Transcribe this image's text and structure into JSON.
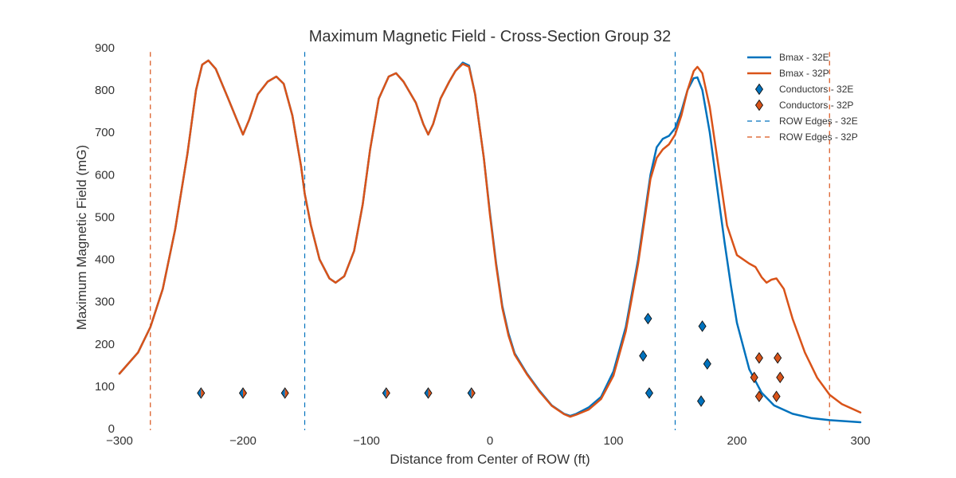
{
  "chart_data": {
    "type": "line",
    "title": "Maximum Magnetic Field - Cross-Section Group 32",
    "xlabel": "Distance from Center of ROW (ft)",
    "ylabel": "Maximum Magnetic Field (mG)",
    "xlim": [
      -300,
      300
    ],
    "ylim": [
      0,
      900
    ],
    "x_ticks": [
      -300,
      -200,
      -100,
      0,
      100,
      200,
      300
    ],
    "x_tick_labels": [
      "−300",
      "−200",
      "−100",
      "0",
      "100",
      "200",
      "300"
    ],
    "y_ticks": [
      0,
      100,
      200,
      300,
      400,
      500,
      600,
      700,
      800,
      900
    ],
    "grid": false,
    "legend_position": "top-right",
    "colors": {
      "32E": "#0072bd",
      "32P": "#d95319"
    },
    "series": [
      {
        "name": "Bmax - 32E",
        "color": "#0072bd",
        "points": [
          [
            -300,
            130
          ],
          [
            -285,
            180
          ],
          [
            -275,
            240
          ],
          [
            -265,
            330
          ],
          [
            -255,
            470
          ],
          [
            -245,
            650
          ],
          [
            -238,
            800
          ],
          [
            -233,
            860
          ],
          [
            -228,
            870
          ],
          [
            -222,
            850
          ],
          [
            -212,
            780
          ],
          [
            -205,
            730
          ],
          [
            -200,
            695
          ],
          [
            -195,
            730
          ],
          [
            -188,
            790
          ],
          [
            -180,
            820
          ],
          [
            -173,
            832
          ],
          [
            -167,
            815
          ],
          [
            -160,
            740
          ],
          [
            -153,
            620
          ],
          [
            -150,
            555
          ],
          [
            -145,
            480
          ],
          [
            -138,
            400
          ],
          [
            -130,
            355
          ],
          [
            -125,
            345
          ],
          [
            -118,
            360
          ],
          [
            -110,
            420
          ],
          [
            -103,
            530
          ],
          [
            -97,
            660
          ],
          [
            -90,
            780
          ],
          [
            -82,
            832
          ],
          [
            -76,
            840
          ],
          [
            -70,
            820
          ],
          [
            -60,
            770
          ],
          [
            -54,
            720
          ],
          [
            -50,
            695
          ],
          [
            -46,
            720
          ],
          [
            -40,
            780
          ],
          [
            -33,
            820
          ],
          [
            -28,
            845
          ],
          [
            -22,
            865
          ],
          [
            -17,
            858
          ],
          [
            -12,
            790
          ],
          [
            -5,
            640
          ],
          [
            0,
            510
          ],
          [
            5,
            390
          ],
          [
            10,
            290
          ],
          [
            15,
            225
          ],
          [
            20,
            178
          ],
          [
            30,
            130
          ],
          [
            40,
            90
          ],
          [
            50,
            55
          ],
          [
            60,
            35
          ],
          [
            65,
            30
          ],
          [
            70,
            35
          ],
          [
            80,
            50
          ],
          [
            90,
            75
          ],
          [
            100,
            135
          ],
          [
            110,
            240
          ],
          [
            120,
            400
          ],
          [
            125,
            500
          ],
          [
            130,
            600
          ],
          [
            135,
            665
          ],
          [
            140,
            685
          ],
          [
            145,
            692
          ],
          [
            150,
            710
          ],
          [
            155,
            750
          ],
          [
            160,
            800
          ],
          [
            165,
            828
          ],
          [
            168,
            830
          ],
          [
            172,
            800
          ],
          [
            178,
            700
          ],
          [
            183,
            590
          ],
          [
            190,
            440
          ],
          [
            195,
            340
          ],
          [
            200,
            250
          ],
          [
            210,
            140
          ],
          [
            220,
            85
          ],
          [
            230,
            55
          ],
          [
            245,
            35
          ],
          [
            260,
            25
          ],
          [
            275,
            20
          ],
          [
            300,
            15
          ]
        ]
      },
      {
        "name": "Bmax - 32P",
        "color": "#d95319",
        "points": [
          [
            -300,
            130
          ],
          [
            -285,
            180
          ],
          [
            -275,
            240
          ],
          [
            -265,
            330
          ],
          [
            -255,
            470
          ],
          [
            -245,
            650
          ],
          [
            -238,
            800
          ],
          [
            -233,
            860
          ],
          [
            -228,
            870
          ],
          [
            -222,
            850
          ],
          [
            -212,
            780
          ],
          [
            -205,
            730
          ],
          [
            -200,
            695
          ],
          [
            -195,
            730
          ],
          [
            -188,
            790
          ],
          [
            -180,
            820
          ],
          [
            -173,
            832
          ],
          [
            -167,
            815
          ],
          [
            -160,
            740
          ],
          [
            -153,
            620
          ],
          [
            -150,
            555
          ],
          [
            -145,
            480
          ],
          [
            -138,
            400
          ],
          [
            -130,
            355
          ],
          [
            -125,
            345
          ],
          [
            -118,
            360
          ],
          [
            -110,
            420
          ],
          [
            -103,
            530
          ],
          [
            -97,
            660
          ],
          [
            -90,
            780
          ],
          [
            -82,
            832
          ],
          [
            -76,
            840
          ],
          [
            -70,
            820
          ],
          [
            -60,
            770
          ],
          [
            -54,
            720
          ],
          [
            -50,
            695
          ],
          [
            -46,
            720
          ],
          [
            -40,
            780
          ],
          [
            -33,
            820
          ],
          [
            -28,
            845
          ],
          [
            -22,
            862
          ],
          [
            -17,
            855
          ],
          [
            -12,
            790
          ],
          [
            -5,
            640
          ],
          [
            0,
            505
          ],
          [
            5,
            385
          ],
          [
            10,
            285
          ],
          [
            15,
            220
          ],
          [
            20,
            175
          ],
          [
            30,
            128
          ],
          [
            40,
            88
          ],
          [
            50,
            54
          ],
          [
            60,
            34
          ],
          [
            65,
            28
          ],
          [
            70,
            33
          ],
          [
            80,
            45
          ],
          [
            90,
            70
          ],
          [
            100,
            125
          ],
          [
            110,
            230
          ],
          [
            120,
            390
          ],
          [
            125,
            490
          ],
          [
            130,
            590
          ],
          [
            135,
            640
          ],
          [
            140,
            660
          ],
          [
            145,
            672
          ],
          [
            150,
            695
          ],
          [
            155,
            740
          ],
          [
            160,
            800
          ],
          [
            165,
            845
          ],
          [
            168,
            855
          ],
          [
            172,
            840
          ],
          [
            178,
            760
          ],
          [
            185,
            620
          ],
          [
            192,
            480
          ],
          [
            200,
            410
          ],
          [
            210,
            390
          ],
          [
            215,
            382
          ],
          [
            220,
            358
          ],
          [
            224,
            345
          ],
          [
            228,
            352
          ],
          [
            232,
            355
          ],
          [
            238,
            330
          ],
          [
            245,
            260
          ],
          [
            255,
            180
          ],
          [
            265,
            120
          ],
          [
            275,
            80
          ],
          [
            285,
            58
          ],
          [
            300,
            38
          ]
        ]
      }
    ],
    "conductors": [
      {
        "name": "Conductors - 32E",
        "color": "#0072bd",
        "points": [
          [
            -234,
            84
          ],
          [
            -200,
            84
          ],
          [
            -166,
            84
          ],
          [
            -84,
            84
          ],
          [
            -50,
            84
          ],
          [
            -15,
            84
          ],
          [
            128,
            260
          ],
          [
            124,
            172
          ],
          [
            129,
            84
          ],
          [
            172,
            242
          ],
          [
            176,
            153
          ],
          [
            171,
            65
          ]
        ]
      },
      {
        "name": "Conductors - 32P",
        "color": "#d95319",
        "points": [
          [
            -234,
            84
          ],
          [
            -200,
            84
          ],
          [
            -166,
            84
          ],
          [
            -84,
            84
          ],
          [
            -50,
            84
          ],
          [
            -15,
            84
          ],
          [
            218,
            167
          ],
          [
            233,
            167
          ],
          [
            214,
            121
          ],
          [
            235,
            121
          ],
          [
            218,
            76
          ],
          [
            232,
            76
          ]
        ]
      }
    ],
    "row_edges": [
      {
        "name": "ROW Edges - 32E",
        "color": "#0072bd",
        "x": [
          -150,
          150
        ]
      },
      {
        "name": "ROW Edges - 32P",
        "color": "#d95319",
        "x": [
          -275,
          275
        ]
      }
    ]
  }
}
